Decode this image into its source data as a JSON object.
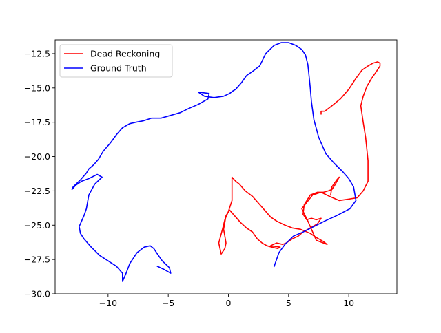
{
  "chart_data": {
    "type": "line",
    "title": "",
    "xlabel": "",
    "ylabel": "",
    "xlim": [
      -14.4,
      14.0
    ],
    "ylim": [
      -30.0,
      -11.5
    ],
    "xticks": [
      -10,
      -5,
      0,
      5,
      10
    ],
    "yticks": [
      -30.0,
      -27.5,
      -25.0,
      -22.5,
      -20.0,
      -17.5,
      -15.0,
      -12.5
    ],
    "xtick_labels": [
      "−10",
      "−5",
      "0",
      "5",
      "10"
    ],
    "ytick_labels": [
      "−30.0",
      "−27.5",
      "−25.0",
      "−22.5",
      "−20.0",
      "−17.5",
      "−15.0",
      "−12.5"
    ],
    "grid": false,
    "legend": {
      "placement": "top-left"
    },
    "series": [
      {
        "name": "Dead Reckoning",
        "color": "#ff0000",
        "x": [
          8.5,
          8.6,
          9.0,
          9.2,
          8.9,
          8.6,
          8.3,
          7.9,
          7.4,
          6.8,
          6.3,
          6.2,
          6.5,
          6.9,
          7.3,
          7.7,
          7.4,
          7.0,
          6.6,
          6.2,
          5.8,
          5.3,
          4.8,
          4.5,
          4.0,
          3.5,
          4.3,
          4.1,
          3.6,
          3.2,
          2.8,
          2.4,
          2.0,
          1.5,
          1.0,
          0.5,
          0.1,
          -0.2,
          -0.3,
          -0.4,
          -0.3,
          -0.2,
          -0.3,
          -0.6,
          -0.8,
          -0.5,
          -0.3,
          0.0,
          0.3,
          0.3,
          0.6,
          0.9,
          1.4,
          2.0,
          2.5,
          3.0,
          3.5,
          4.0,
          4.7,
          5.3,
          6.0,
          6.8,
          7.3,
          7.9,
          8.2,
          7.3,
          6.6,
          6.1,
          7.0,
          7.7,
          8.4,
          9.2,
          10.0,
          10.7,
          11.2,
          11.6,
          11.6,
          11.4,
          11.2,
          11.0,
          11.2,
          11.5,
          11.9,
          12.3,
          12.6,
          12.6,
          12.4,
          12.0,
          11.6,
          11.1,
          10.6,
          10.0,
          9.3,
          8.6,
          8.0,
          7.7,
          7.7
        ],
        "y": [
          -22.8,
          -22.2,
          -21.7,
          -21.5,
          -22.0,
          -22.4,
          -22.5,
          -22.6,
          -22.6,
          -22.8,
          -23.5,
          -24.2,
          -24.6,
          -24.5,
          -24.6,
          -24.5,
          -24.9,
          -25.1,
          -25.3,
          -25.5,
          -25.8,
          -26.0,
          -26.3,
          -26.4,
          -26.3,
          -26.5,
          -26.6,
          -26.7,
          -26.6,
          -26.5,
          -26.3,
          -26.0,
          -25.5,
          -25.2,
          -24.8,
          -24.3,
          -23.9,
          -24.3,
          -24.8,
          -25.3,
          -25.8,
          -26.3,
          -26.7,
          -27.1,
          -26.3,
          -25.3,
          -24.6,
          -24.0,
          -23.2,
          -21.5,
          -21.8,
          -22.0,
          -22.5,
          -22.9,
          -23.4,
          -23.9,
          -24.4,
          -24.7,
          -25.0,
          -25.2,
          -25.3,
          -25.6,
          -25.9,
          -26.2,
          -26.4,
          -26.1,
          -24.7,
          -23.8,
          -22.8,
          -22.6,
          -22.9,
          -23.2,
          -23.1,
          -23.0,
          -22.5,
          -21.8,
          -20.3,
          -18.6,
          -17.5,
          -16.3,
          -15.6,
          -14.9,
          -14.3,
          -13.8,
          -13.4,
          -13.2,
          -13.1,
          -13.2,
          -13.4,
          -13.7,
          -14.3,
          -15.1,
          -15.8,
          -16.3,
          -16.7,
          -16.7,
          -16.9
        ]
      },
      {
        "name": "Ground Truth",
        "color": "#0000ff",
        "x": [
          3.8,
          4.2,
          4.7,
          5.4,
          6.2,
          7.1,
          8.0,
          9.0,
          10.1,
          10.6,
          10.4,
          10.0,
          9.5,
          8.8,
          8.1,
          7.5,
          7.1,
          6.9,
          6.8,
          6.7,
          6.6,
          6.4,
          6.1,
          5.6,
          5.0,
          4.4,
          3.8,
          3.1,
          2.6,
          2.0,
          1.5,
          1.1,
          0.6,
          0.4,
          0.1,
          -0.4,
          -1.2,
          -2.0,
          -2.5,
          -1.6,
          -1.7,
          -2.5,
          -3.3,
          -4.0,
          -4.8,
          -5.6,
          -6.4,
          -7.1,
          -7.7,
          -8.2,
          -8.8,
          -9.3,
          -9.8,
          -10.4,
          -10.8,
          -11.2,
          -11.6,
          -11.8,
          -12.3,
          -12.9,
          -13.0,
          -12.7,
          -12.2,
          -11.6,
          -10.9,
          -10.5,
          -11.1,
          -11.6,
          -11.8,
          -12.0,
          -12.2,
          -12.4,
          -12.3,
          -12.0,
          -11.4,
          -10.7,
          -10.0,
          -9.3,
          -8.8,
          -8.8,
          -8.5,
          -8.2,
          -7.6,
          -7.0,
          -6.5,
          -6.2,
          -5.9,
          -5.5,
          -4.9,
          -4.8,
          -5.4,
          -5.9
        ],
        "y": [
          -28.0,
          -27.0,
          -26.4,
          -25.8,
          -25.5,
          -25.1,
          -24.7,
          -24.3,
          -23.8,
          -23.2,
          -22.2,
          -21.6,
          -21.1,
          -20.5,
          -19.8,
          -18.6,
          -17.3,
          -16.0,
          -15.0,
          -14.1,
          -13.3,
          -12.6,
          -12.2,
          -11.9,
          -11.7,
          -11.7,
          -11.9,
          -12.5,
          -13.4,
          -13.8,
          -14.1,
          -14.6,
          -15.1,
          -15.2,
          -15.4,
          -15.6,
          -15.7,
          -15.6,
          -15.3,
          -15.4,
          -15.8,
          -16.2,
          -16.5,
          -16.8,
          -17.0,
          -17.2,
          -17.2,
          -17.4,
          -17.5,
          -17.6,
          -17.9,
          -18.4,
          -19.0,
          -19.6,
          -20.2,
          -20.6,
          -20.9,
          -21.2,
          -21.7,
          -22.2,
          -22.4,
          -22.1,
          -21.8,
          -21.6,
          -21.3,
          -21.5,
          -22.0,
          -22.8,
          -23.8,
          -24.3,
          -24.7,
          -25.1,
          -25.6,
          -26.0,
          -26.6,
          -27.2,
          -27.6,
          -28.0,
          -28.5,
          -29.1,
          -28.5,
          -27.8,
          -27.0,
          -26.6,
          -26.5,
          -26.7,
          -27.1,
          -27.6,
          -28.1,
          -28.5,
          -28.2,
          -28.0
        ]
      }
    ]
  }
}
